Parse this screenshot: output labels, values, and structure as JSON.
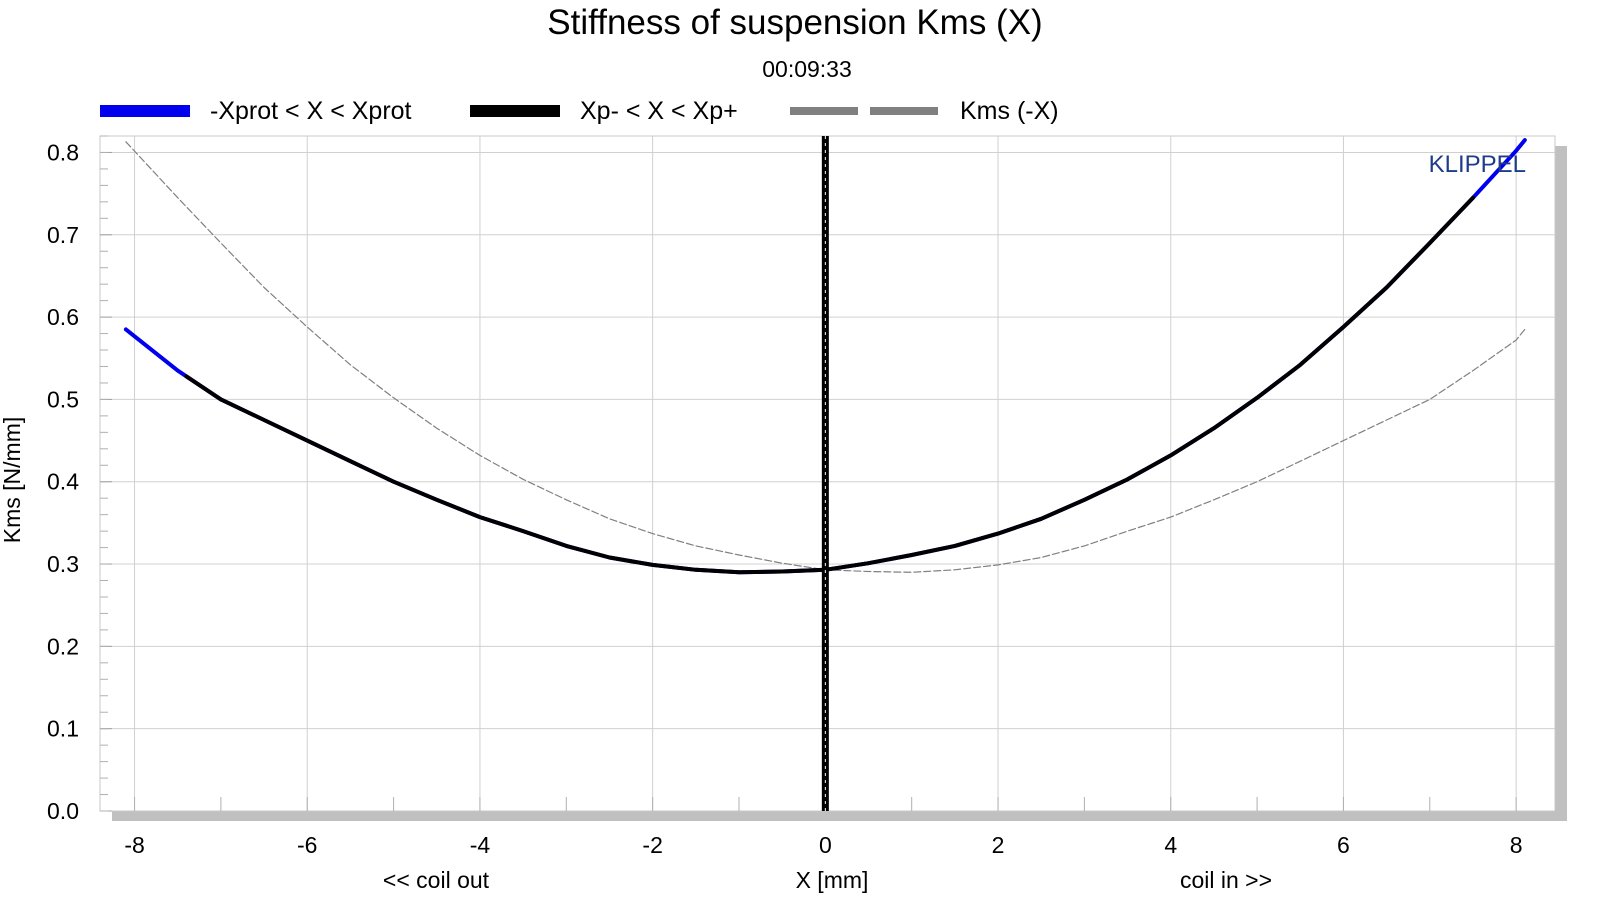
{
  "chart_data": {
    "type": "line",
    "title": "Stiffness of suspension Kms (X)",
    "subtitle": "00:09:33",
    "xlabel": "X [mm]",
    "xlabel_left": "<< coil out",
    "xlabel_right": "coil in >>",
    "ylabel": "Kms [N/mm]",
    "watermark": "KLIPPEL",
    "xlim": [
      -8.4,
      8.45
    ],
    "ylim": [
      0,
      0.82
    ],
    "xticks": [
      -8,
      -6,
      -4,
      -2,
      0,
      2,
      4,
      6,
      8
    ],
    "xtick_labels": [
      "-8",
      "-6",
      "-4",
      "-2",
      "0",
      "2",
      "4",
      "6",
      "8"
    ],
    "yticks": [
      0,
      0.1,
      0.2,
      0.3,
      0.4,
      0.5,
      0.6,
      0.7,
      0.8
    ],
    "ytick_labels": [
      "0.0",
      "0.1",
      "0.2",
      "0.3",
      "0.4",
      "0.5",
      "0.6",
      "0.7",
      "0.8"
    ],
    "grid": true,
    "legend_position": "top",
    "marker_x": 0,
    "series": [
      {
        "name": "-Xprot < X < Xprot",
        "color": "#0000ee",
        "style": "solid",
        "x": [
          -8.1,
          -7.5,
          -7,
          -6.5,
          -6,
          -5.5,
          -5,
          -4.5,
          -4,
          -3.5,
          -3,
          -2.5,
          -2,
          -1.5,
          -1,
          -0.5,
          0,
          0.5,
          1,
          1.5,
          2,
          2.5,
          3,
          3.5,
          4,
          4.5,
          5,
          5.5,
          6,
          6.5,
          7,
          7.5,
          8,
          8.1
        ],
        "y": [
          0.585,
          0.535,
          0.5,
          0.475,
          0.45,
          0.425,
          0.4,
          0.378,
          0.357,
          0.34,
          0.322,
          0.308,
          0.299,
          0.293,
          0.29,
          0.291,
          0.293,
          0.301,
          0.311,
          0.322,
          0.337,
          0.355,
          0.378,
          0.403,
          0.432,
          0.465,
          0.502,
          0.542,
          0.588,
          0.636,
          0.69,
          0.745,
          0.802,
          0.815
        ]
      },
      {
        "name": "Xp- < X < Xp+",
        "color": "#000000",
        "style": "solid",
        "x": [
          -7.4,
          -7,
          -6.5,
          -6,
          -5.5,
          -5,
          -4.5,
          -4,
          -3.5,
          -3,
          -2.5,
          -2,
          -1.5,
          -1,
          -0.5,
          0,
          0.5,
          1,
          1.5,
          2,
          2.5,
          3,
          3.5,
          4,
          4.5,
          5,
          5.5,
          6,
          6.5,
          7,
          7.5
        ],
        "y": [
          0.528,
          0.5,
          0.475,
          0.45,
          0.425,
          0.4,
          0.378,
          0.357,
          0.34,
          0.322,
          0.308,
          0.299,
          0.293,
          0.29,
          0.291,
          0.293,
          0.301,
          0.311,
          0.322,
          0.337,
          0.355,
          0.378,
          0.403,
          0.432,
          0.465,
          0.502,
          0.542,
          0.588,
          0.636,
          0.69,
          0.745
        ]
      },
      {
        "name": "Kms (-X)",
        "color": "#808080",
        "style": "dashed",
        "x": [
          -8.1,
          -7.5,
          -7,
          -6.5,
          -6,
          -5.5,
          -5,
          -4.5,
          -4,
          -3.5,
          -3,
          -2.5,
          -2,
          -1.5,
          -1,
          -0.5,
          0,
          0.5,
          1,
          1.5,
          2,
          2.5,
          3,
          3.5,
          4,
          4.5,
          5,
          5.5,
          6,
          6.5,
          7,
          7.5,
          8,
          8.1
        ],
        "y": [
          0.813,
          0.745,
          0.69,
          0.636,
          0.588,
          0.542,
          0.502,
          0.465,
          0.432,
          0.403,
          0.378,
          0.355,
          0.337,
          0.322,
          0.311,
          0.301,
          0.293,
          0.291,
          0.29,
          0.293,
          0.299,
          0.308,
          0.322,
          0.34,
          0.357,
          0.378,
          0.4,
          0.425,
          0.45,
          0.475,
          0.5,
          0.535,
          0.572,
          0.585
        ]
      }
    ]
  }
}
